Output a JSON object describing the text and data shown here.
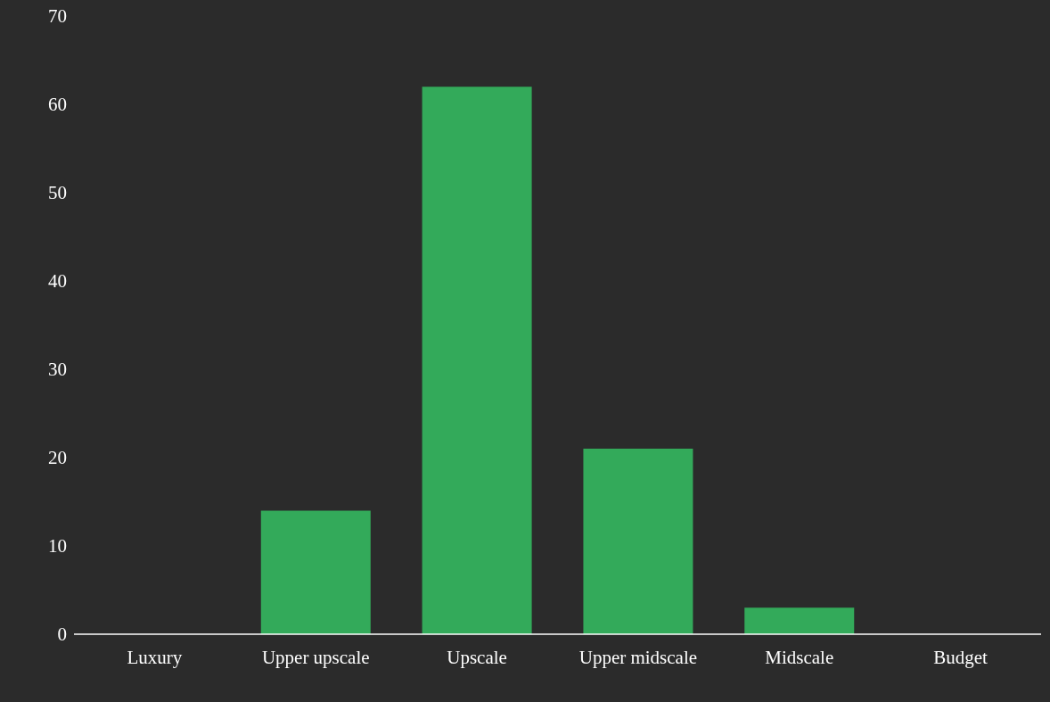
{
  "chart_data": {
    "type": "bar",
    "categories": [
      "Luxury",
      "Upper upscale",
      "Upscale",
      "Upper midscale",
      "Midscale",
      "Budget"
    ],
    "values": [
      0,
      14,
      62,
      21,
      3,
      0
    ],
    "color": "#33aa5a",
    "ylim": [
      0,
      70
    ],
    "yticks": [
      0,
      10,
      20,
      30,
      40,
      50,
      60,
      70
    ],
    "grid": false,
    "legend": false
  }
}
